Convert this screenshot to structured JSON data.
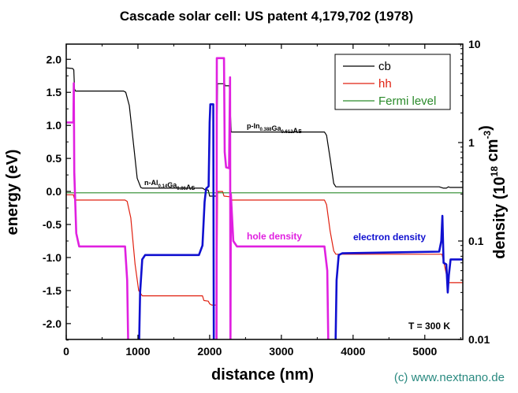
{
  "chart_data": {
    "type": "line",
    "title": "Cascade solar cell: US patent 4,179,702  (1978)",
    "xlabel": "distance (nm)",
    "ylabel": "energy (eV)",
    "y2label": "density (10^18 cm^-3)",
    "y2label_parts": {
      "a": "density (10",
      "sup1": "18",
      "b": " cm",
      "sup2": "-3",
      "c": ")"
    },
    "xlim": [
      0,
      5530
    ],
    "ylim": [
      -2.24,
      2.23
    ],
    "y2lim": [
      0.01,
      10
    ],
    "y2scale": "log",
    "grid": false,
    "legend_position": "top-right",
    "x_ticks": [
      0,
      1000,
      2000,
      3000,
      4000,
      5000
    ],
    "y_ticks": [
      "-2.0",
      "-1.5",
      "-1.0",
      "-0.5",
      "0.0",
      "0.5",
      "1.0",
      "1.5",
      "2.0"
    ],
    "y2_ticks": [
      "0.01",
      "0.1",
      "1",
      "10"
    ],
    "series": [
      {
        "name": "cb",
        "axis": "left",
        "color": "#000000",
        "in_legend": true,
        "points": [
          [
            0,
            1.87
          ],
          [
            90,
            1.86
          ],
          [
            105,
            1.84
          ],
          [
            115,
            1.55
          ],
          [
            130,
            1.52
          ],
          [
            800,
            1.52
          ],
          [
            830,
            1.5
          ],
          [
            880,
            1.3
          ],
          [
            940,
            0.7
          ],
          [
            990,
            0.2
          ],
          [
            1040,
            0.06
          ],
          [
            1060,
            0.05
          ],
          [
            1900,
            0.05
          ],
          [
            1930,
            0.03
          ],
          [
            1980,
            0.02
          ],
          [
            2000,
            -0.07
          ],
          [
            2090,
            -0.07
          ],
          [
            2110,
            1.63
          ],
          [
            2210,
            1.63
          ],
          [
            2215,
            1.6
          ],
          [
            2275,
            1.6
          ],
          [
            2300,
            0.9
          ],
          [
            3600,
            0.9
          ],
          [
            3630,
            0.85
          ],
          [
            3680,
            0.5
          ],
          [
            3730,
            0.12
          ],
          [
            3760,
            0.07
          ],
          [
            5200,
            0.07
          ],
          [
            5260,
            0.05
          ],
          [
            5300,
            0.05
          ],
          [
            5330,
            0.07
          ],
          [
            5350,
            0.06
          ],
          [
            5530,
            0.06
          ]
        ]
      },
      {
        "name": "hh",
        "axis": "left",
        "color": "#e02010",
        "in_legend": true,
        "points": [
          [
            0,
            -0.05
          ],
          [
            100,
            -0.05
          ],
          [
            120,
            -0.13
          ],
          [
            820,
            -0.13
          ],
          [
            850,
            -0.15
          ],
          [
            900,
            -0.4
          ],
          [
            960,
            -1.1
          ],
          [
            1010,
            -1.5
          ],
          [
            1060,
            -1.58
          ],
          [
            1900,
            -1.58
          ],
          [
            1920,
            -1.65
          ],
          [
            1980,
            -1.66
          ],
          [
            2000,
            -1.7
          ],
          [
            2030,
            -1.72
          ],
          [
            2100,
            -1.72
          ],
          [
            2110,
            0.0
          ],
          [
            2180,
            0.0
          ],
          [
            2200,
            -0.07
          ],
          [
            2280,
            -0.08
          ],
          [
            2300,
            -0.13
          ],
          [
            3600,
            -0.13
          ],
          [
            3630,
            -0.2
          ],
          [
            3680,
            -0.6
          ],
          [
            3730,
            -0.9
          ],
          [
            3760,
            -0.95
          ],
          [
            5240,
            -0.95
          ],
          [
            5270,
            -1.1
          ],
          [
            5320,
            -1.35
          ],
          [
            5340,
            -1.38
          ],
          [
            5530,
            -1.38
          ]
        ]
      },
      {
        "name": "Fermi level",
        "axis": "left",
        "color": "#2a8a2a",
        "in_legend": true,
        "points": [
          [
            0,
            -0.02
          ],
          [
            5530,
            -0.02
          ]
        ]
      },
      {
        "name": "hole density",
        "axis": "right",
        "color": "#e020e0",
        "in_legend": false,
        "points": [
          [
            0,
            1.6
          ],
          [
            100,
            1.6
          ],
          [
            105,
            4.0
          ],
          [
            112,
            0.5
          ],
          [
            140,
            0.12
          ],
          [
            180,
            0.088
          ],
          [
            820,
            0.088
          ],
          [
            850,
            0.04
          ],
          [
            865,
            0.008
          ],
          [
            2095,
            0.008
          ],
          [
            2100,
            7.2
          ],
          [
            2200,
            7.2
          ],
          [
            2210,
            0.8
          ],
          [
            2230,
            0.56
          ],
          [
            2270,
            0.55
          ],
          [
            2285,
            4.6
          ],
          [
            2290,
            0.008
          ],
          [
            2296,
            0.3
          ],
          [
            2330,
            0.1
          ],
          [
            2380,
            0.088
          ],
          [
            3600,
            0.088
          ],
          [
            3640,
            0.05
          ],
          [
            3655,
            0.008
          ]
        ]
      },
      {
        "name": "electron density",
        "axis": "right",
        "color": "#1010d0",
        "in_legend": false,
        "points": [
          [
            1015,
            0.008
          ],
          [
            1030,
            0.03
          ],
          [
            1060,
            0.065
          ],
          [
            1100,
            0.072
          ],
          [
            1850,
            0.072
          ],
          [
            1900,
            0.09
          ],
          [
            1930,
            0.25
          ],
          [
            1950,
            0.34
          ],
          [
            1985,
            0.36
          ],
          [
            2000,
            1.6
          ],
          [
            2010,
            2.45
          ],
          [
            2050,
            2.45
          ],
          [
            2058,
            0.008
          ],
          [
            3755,
            0.008
          ],
          [
            3770,
            0.04
          ],
          [
            3800,
            0.072
          ],
          [
            3850,
            0.075
          ],
          [
            5200,
            0.078
          ],
          [
            5230,
            0.1
          ],
          [
            5245,
            0.18
          ],
          [
            5262,
            0.06
          ],
          [
            5300,
            0.058
          ],
          [
            5320,
            0.03
          ],
          [
            5335,
            0.045
          ],
          [
            5360,
            0.065
          ],
          [
            5530,
            0.065
          ]
        ]
      }
    ],
    "annotations": {
      "layer1": [
        {
          "t": "n-Al"
        },
        {
          "sub": "0.14"
        },
        {
          "t": "Ga"
        },
        {
          "sub": "0.86"
        },
        {
          "t": "As"
        }
      ],
      "layer2": [
        {
          "t": "p-In"
        },
        {
          "sub": "0.388"
        },
        {
          "t": "Ga"
        },
        {
          "sub": "0.612"
        },
        {
          "t": "As"
        }
      ],
      "hole_label": "hole density",
      "electron_label": "electron density",
      "temperature": "T = 300 K"
    }
  },
  "credit": "(c) www.nextnano.de",
  "colors": {
    "credit": "#2a8a80",
    "hole": "#e020e0",
    "electron": "#1010d0"
  }
}
